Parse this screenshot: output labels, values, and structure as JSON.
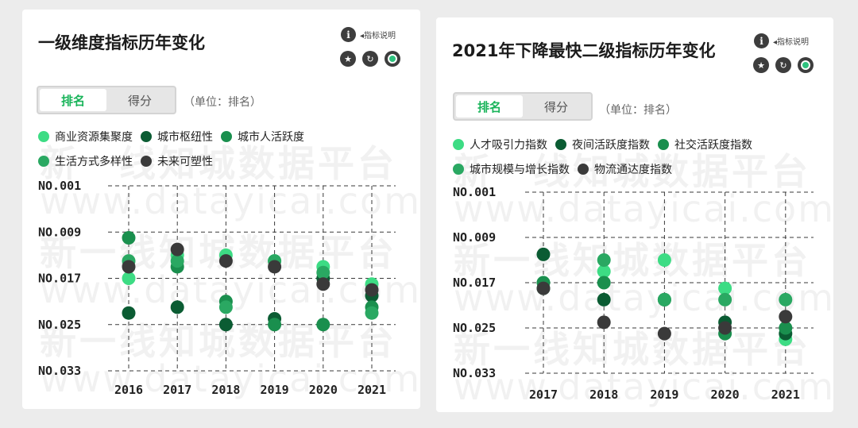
{
  "watermark": {
    "cn": "新一线知城数据平台",
    "url": "www.datayicai.com"
  },
  "panels": [
    {
      "title": "一级维度指标历年变化",
      "info_label": "◂指标说明",
      "icons": [
        "info-icon",
        "star-icon",
        "refresh-icon",
        "target-icon"
      ],
      "toggle": {
        "active": "排名",
        "inactive": "得分"
      },
      "unit_note": "（单位：排名）",
      "legend_rows": [
        [
          0,
          1,
          2
        ],
        [
          3,
          4
        ]
      ]
    },
    {
      "title": "2021年下降最快二级指标历年变化",
      "info_label": "◂指标说明",
      "icons": [
        "info-icon",
        "star-icon",
        "refresh-icon",
        "target-icon"
      ],
      "toggle": {
        "active": "排名",
        "inactive": "得分"
      },
      "unit_note": "（单位：排名）",
      "legend_rows": [
        [
          0,
          1,
          2
        ],
        [
          3,
          4
        ]
      ]
    }
  ],
  "chart_data": [
    {
      "type": "scatter",
      "title": "一级维度指标历年变化",
      "xlabel": "",
      "ylabel": "",
      "y_axis_inverted": true,
      "ylim": [
        1,
        33
      ],
      "yticks": [
        1,
        9,
        17,
        25,
        33
      ],
      "ytick_labels": [
        "NO.001",
        "NO.009",
        "NO.017",
        "NO.025",
        "NO.033"
      ],
      "categories": [
        "2016",
        "2017",
        "2018",
        "2019",
        "2020",
        "2021"
      ],
      "grid": "dashed",
      "legend_position": "top",
      "series": [
        {
          "name": "商业资源集聚度",
          "color": "#3ddc84",
          "values": [
            17,
            13,
            13,
            14,
            15,
            18
          ]
        },
        {
          "name": "城市枢纽性",
          "color": "#0b5c33",
          "values": [
            23,
            22,
            25,
            24,
            17,
            20
          ]
        },
        {
          "name": "城市人活跃度",
          "color": "#1a8f4e",
          "values": [
            10,
            15,
            21,
            25,
            25,
            22
          ]
        },
        {
          "name": "生活方式多样性",
          "color": "#2aa862",
          "values": [
            14,
            14,
            22,
            14,
            16,
            23
          ]
        },
        {
          "name": "未来可塑性",
          "color": "#3a3a3a",
          "values": [
            15,
            12,
            14,
            15,
            18,
            19
          ]
        }
      ]
    },
    {
      "type": "scatter",
      "title": "2021年下降最快二级指标历年变化",
      "xlabel": "",
      "ylabel": "",
      "y_axis_inverted": true,
      "ylim": [
        1,
        33
      ],
      "yticks": [
        1,
        9,
        17,
        25,
        33
      ],
      "ytick_labels": [
        "NO.001",
        "NO.009",
        "NO.017",
        "NO.025",
        "NO.033"
      ],
      "categories": [
        "2017",
        "2018",
        "2019",
        "2020",
        "2021"
      ],
      "grid": "dashed",
      "legend_position": "top",
      "series": [
        {
          "name": "人才吸引力指数",
          "color": "#3ddc84",
          "values": [
            17,
            15,
            13,
            18,
            27
          ]
        },
        {
          "name": "夜间活跃度指数",
          "color": "#0b5c33",
          "values": [
            12,
            20,
            20,
            24,
            26
          ]
        },
        {
          "name": "社交活跃度指数",
          "color": "#1a8f4e",
          "values": [
            17,
            17,
            20,
            26,
            25
          ]
        },
        {
          "name": "城市规模与增长指数",
          "color": "#2aa862",
          "values": [
            18,
            13,
            20,
            20,
            20
          ]
        },
        {
          "name": "物流通达度指数",
          "color": "#3a3a3a",
          "values": [
            18,
            24,
            26,
            25,
            23
          ]
        }
      ]
    }
  ]
}
